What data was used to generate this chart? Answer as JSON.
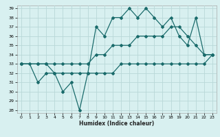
{
  "xlabel": "Humidex (Indice chaleur)",
  "bg_color": "#d8f0f0",
  "grid_color": "#b8d8d8",
  "line_color": "#1a6b6b",
  "xlim": [
    -0.5,
    23.5
  ],
  "ylim": [
    27.7,
    39.3
  ],
  "xticks": [
    0,
    1,
    2,
    3,
    4,
    5,
    6,
    7,
    8,
    9,
    10,
    11,
    12,
    13,
    14,
    15,
    16,
    17,
    18,
    19,
    20,
    21,
    22,
    23
  ],
  "yticks": [
    28,
    29,
    30,
    31,
    32,
    33,
    34,
    35,
    36,
    37,
    38,
    39
  ],
  "series1_x": [
    0,
    1,
    2,
    3,
    4,
    5,
    6,
    7,
    8,
    9,
    10,
    11,
    12,
    13,
    14,
    15,
    16,
    17,
    18,
    19,
    20,
    21,
    22,
    23
  ],
  "series1_y": [
    33,
    33,
    31,
    32,
    32,
    30,
    31,
    28,
    32,
    37,
    36,
    38,
    38,
    39,
    38,
    39,
    38,
    37,
    38,
    36,
    35,
    38,
    34,
    34
  ],
  "series2_x": [
    0,
    2,
    3,
    4,
    5,
    6,
    7,
    8,
    9,
    10,
    11,
    12,
    13,
    14,
    15,
    16,
    17,
    18,
    19,
    20,
    21,
    22,
    23
  ],
  "series2_y": [
    33,
    33,
    33,
    33,
    33,
    33,
    33,
    33,
    34,
    34,
    35,
    35,
    35,
    36,
    36,
    36,
    36,
    37,
    37,
    36,
    35,
    34,
    34
  ],
  "series3_x": [
    0,
    2,
    3,
    4,
    5,
    6,
    7,
    8,
    9,
    10,
    11,
    12,
    13,
    14,
    15,
    16,
    17,
    18,
    19,
    20,
    21,
    22,
    23
  ],
  "series3_y": [
    33,
    33,
    33,
    32,
    32,
    32,
    32,
    32,
    32,
    32,
    32,
    33,
    33,
    33,
    33,
    33,
    33,
    33,
    33,
    33,
    33,
    33,
    34
  ]
}
